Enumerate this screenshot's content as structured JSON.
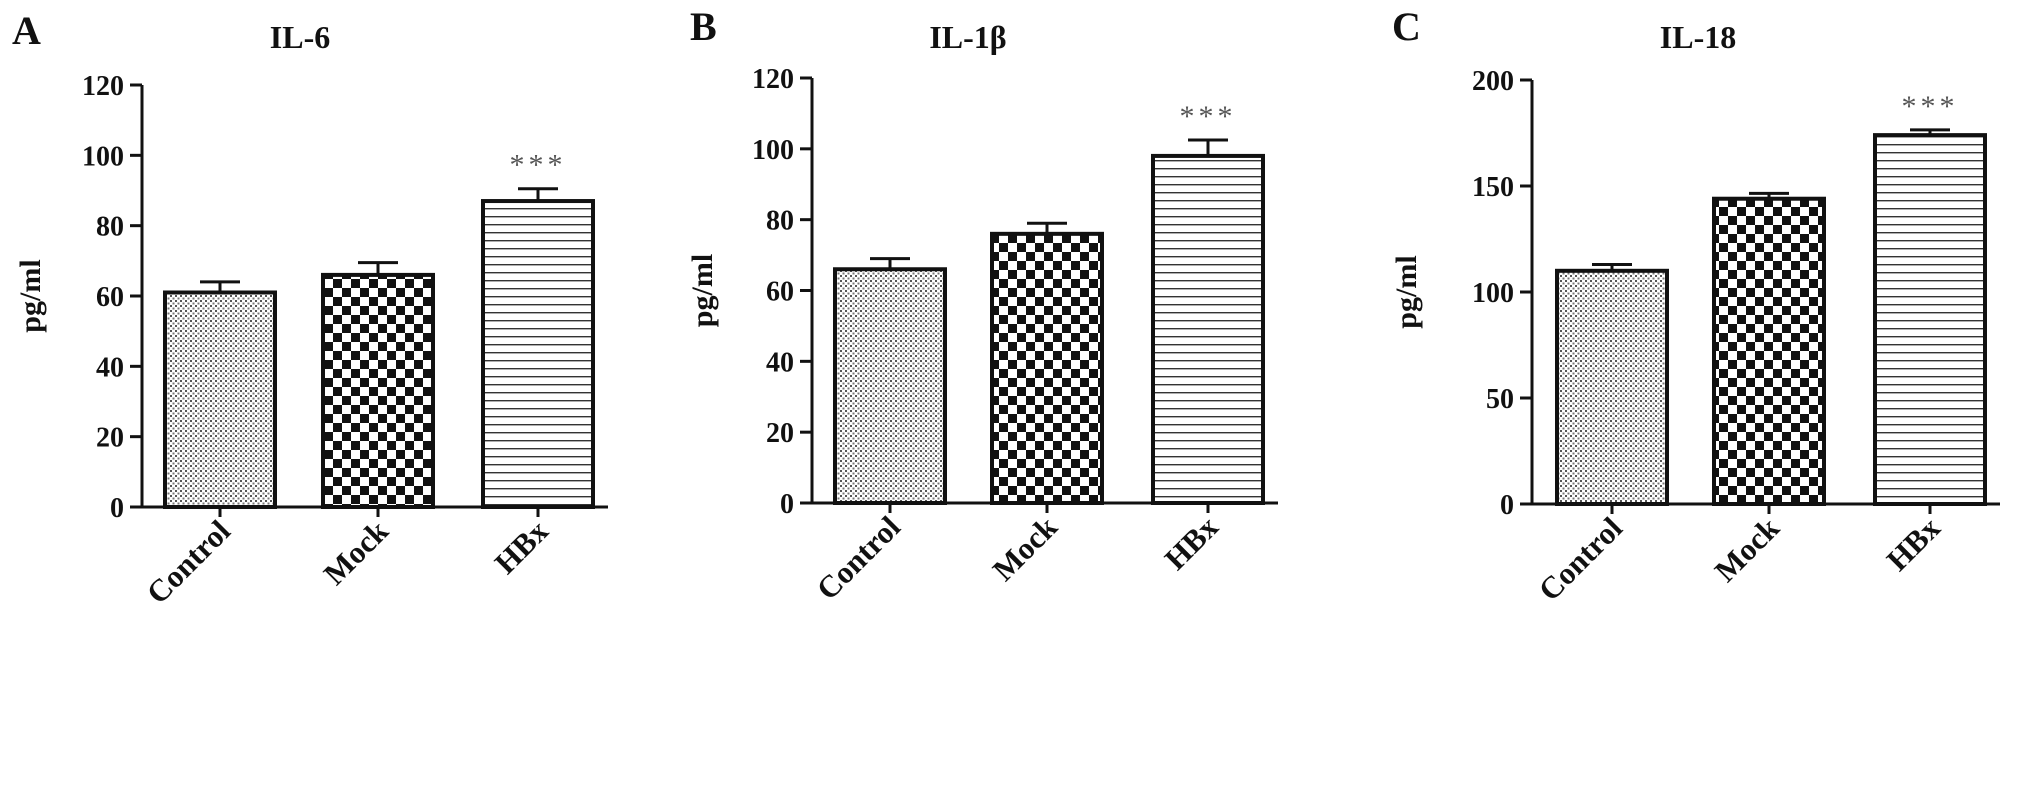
{
  "chart_data": [
    {
      "type": "bar",
      "panel": "A",
      "title": "IL-6",
      "ylabel": "pg/ml",
      "xlabel": "",
      "categories": [
        "Control",
        "Mock",
        "HBx"
      ],
      "values": [
        61,
        66,
        87
      ],
      "errors": [
        3,
        3.5,
        3.5
      ],
      "ylim": [
        0,
        120
      ],
      "yticks": [
        0,
        20,
        40,
        60,
        80,
        100,
        120
      ],
      "annotations": [
        {
          "category": "HBx",
          "text": "***"
        }
      ]
    },
    {
      "type": "bar",
      "panel": "B",
      "title": "IL-1β",
      "ylabel": "pg/ml",
      "xlabel": "",
      "categories": [
        "Control",
        "Mock",
        "HBx"
      ],
      "values": [
        66,
        76,
        98
      ],
      "errors": [
        3,
        3,
        4.5
      ],
      "ylim": [
        0,
        120
      ],
      "yticks": [
        0,
        20,
        40,
        60,
        80,
        100,
        120
      ],
      "annotations": [
        {
          "category": "HBx",
          "text": "***"
        }
      ]
    },
    {
      "type": "bar",
      "panel": "C",
      "title": "IL-18",
      "ylabel": "pg/ml",
      "xlabel": "",
      "categories": [
        "Control",
        "Mock",
        "HBx"
      ],
      "values": [
        110,
        144,
        174
      ],
      "errors": [
        3,
        2.5,
        2.5
      ],
      "ylim": [
        0,
        200
      ],
      "yticks": [
        0,
        50,
        100,
        150,
        200
      ],
      "annotations": [
        {
          "category": "HBx",
          "text": "***"
        }
      ]
    }
  ],
  "colors": {
    "axis": "#111111",
    "bar_outline": "#111111",
    "annotation": "#555555"
  },
  "patterns": [
    "fine-dots",
    "checkerboard",
    "horizontal-lines"
  ]
}
